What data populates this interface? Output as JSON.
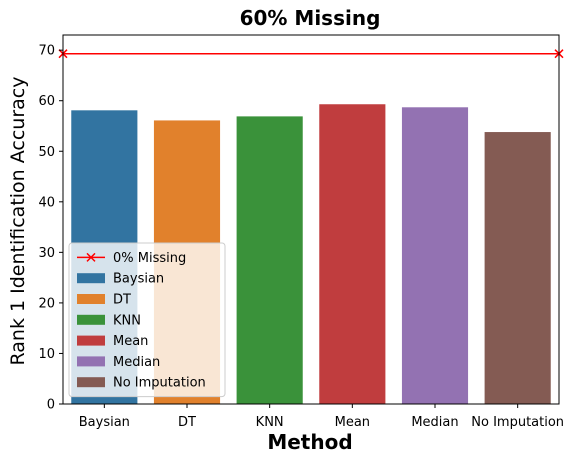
{
  "chart_data": {
    "type": "bar",
    "title": "60% Missing",
    "xlabel": "Method",
    "ylabel": "Rank 1 Identification Accuracy",
    "categories": [
      "Baysian",
      "DT",
      "KNN",
      "Mean",
      "Median",
      "No Imputation"
    ],
    "values": [
      58.1,
      56.1,
      56.9,
      59.3,
      58.7,
      53.8
    ],
    "colors": [
      "#3274a1",
      "#e1812c",
      "#3a923a",
      "#c03d3e",
      "#9372b2",
      "#845b53"
    ],
    "reference_line": {
      "name": "0% Missing",
      "value": 69.3,
      "color": "#ff0000"
    },
    "ylim": [
      0,
      73
    ],
    "yticks": [
      0,
      10,
      20,
      30,
      40,
      50,
      60,
      70
    ],
    "legend_position": "lower-left",
    "grid": false
  }
}
